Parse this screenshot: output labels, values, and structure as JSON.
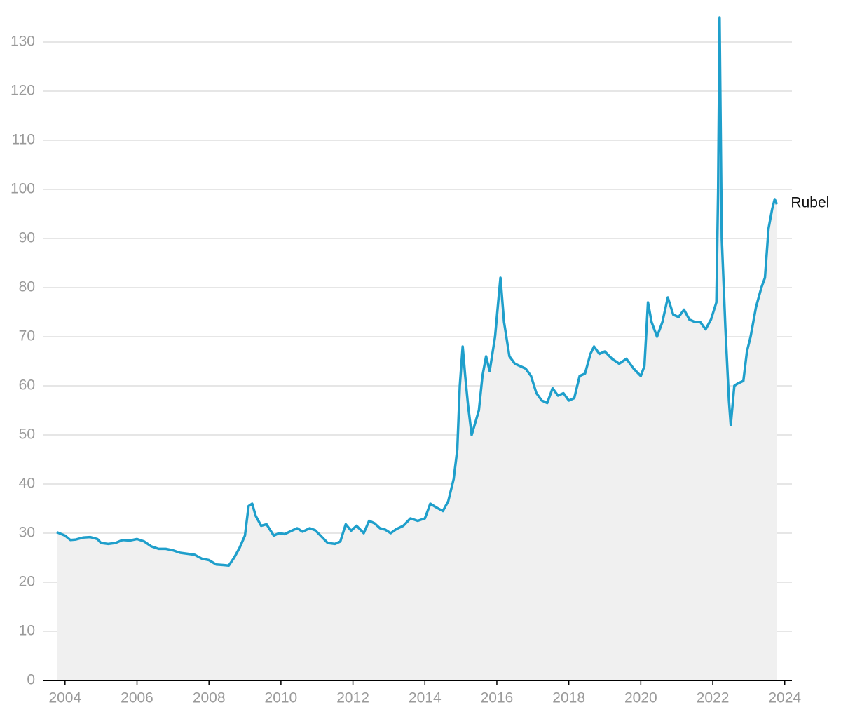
{
  "chart_data": {
    "type": "line",
    "area": true,
    "grid": true,
    "xlim": [
      2003.4,
      2024.2
    ],
    "xticks": [
      2004,
      2006,
      2008,
      2010,
      2012,
      2014,
      2016,
      2018,
      2020,
      2022,
      2024
    ],
    "ylim": [
      0,
      136
    ],
    "yticks": [
      0,
      10,
      20,
      30,
      40,
      50,
      60,
      70,
      80,
      90,
      100,
      110,
      120,
      130
    ],
    "x": [
      2003.77,
      2003.9,
      2004.0,
      2004.15,
      2004.3,
      2004.5,
      2004.7,
      2004.9,
      2005.0,
      2005.2,
      2005.4,
      2005.6,
      2005.8,
      2006.0,
      2006.2,
      2006.4,
      2006.6,
      2006.8,
      2007.0,
      2007.2,
      2007.4,
      2007.6,
      2007.8,
      2008.0,
      2008.2,
      2008.4,
      2008.55,
      2008.7,
      2008.85,
      2009.0,
      2009.1,
      2009.2,
      2009.3,
      2009.45,
      2009.6,
      2009.8,
      2009.95,
      2010.1,
      2010.3,
      2010.45,
      2010.6,
      2010.8,
      2010.95,
      2011.1,
      2011.3,
      2011.5,
      2011.65,
      2011.8,
      2011.95,
      2012.1,
      2012.3,
      2012.45,
      2012.6,
      2012.75,
      2012.9,
      2013.05,
      2013.2,
      2013.4,
      2013.6,
      2013.8,
      2014.0,
      2014.15,
      2014.3,
      2014.5,
      2014.65,
      2014.8,
      2014.9,
      2014.97,
      2015.05,
      2015.12,
      2015.2,
      2015.3,
      2015.4,
      2015.5,
      2015.6,
      2015.7,
      2015.8,
      2015.95,
      2016.05,
      2016.1,
      2016.2,
      2016.35,
      2016.5,
      2016.65,
      2016.8,
      2016.95,
      2017.1,
      2017.25,
      2017.4,
      2017.55,
      2017.7,
      2017.85,
      2018.0,
      2018.15,
      2018.3,
      2018.45,
      2018.6,
      2018.7,
      2018.85,
      2019.0,
      2019.2,
      2019.4,
      2019.6,
      2019.8,
      2020.0,
      2020.1,
      2020.2,
      2020.3,
      2020.45,
      2020.6,
      2020.75,
      2020.9,
      2021.05,
      2021.2,
      2021.35,
      2021.5,
      2021.65,
      2021.8,
      2021.95,
      2022.1,
      2022.15,
      2022.19,
      2022.25,
      2022.35,
      2022.45,
      2022.5,
      2022.6,
      2022.7,
      2022.85,
      2022.95,
      2023.05,
      2023.2,
      2023.35,
      2023.45,
      2023.55,
      2023.65,
      2023.72,
      2023.78
    ],
    "series": [
      {
        "name": "Rubel",
        "color": "#1f9fcb",
        "values": [
          30.2,
          29.8,
          29.5,
          28.6,
          28.7,
          29.1,
          29.2,
          28.8,
          28.0,
          27.8,
          28.0,
          28.6,
          28.5,
          28.8,
          28.3,
          27.3,
          26.8,
          26.8,
          26.5,
          26.0,
          25.8,
          25.6,
          24.8,
          24.5,
          23.6,
          23.5,
          23.4,
          25.0,
          27.0,
          29.5,
          35.5,
          36.0,
          33.5,
          31.5,
          31.8,
          29.5,
          30.0,
          29.8,
          30.5,
          31.0,
          30.3,
          31.0,
          30.6,
          29.5,
          28.0,
          27.8,
          28.3,
          31.8,
          30.5,
          31.5,
          30.0,
          32.5,
          32.0,
          31.0,
          30.7,
          30.0,
          30.8,
          31.5,
          33.0,
          32.5,
          33.0,
          36.0,
          35.3,
          34.5,
          36.5,
          41.0,
          47.0,
          60.0,
          68.0,
          62.0,
          56.0,
          50.0,
          52.5,
          55.0,
          62.0,
          66.0,
          63.0,
          70.0,
          78.0,
          82.0,
          73.0,
          66.0,
          64.5,
          64.0,
          63.5,
          62.0,
          58.5,
          57.0,
          56.5,
          59.5,
          58.0,
          58.5,
          57.0,
          57.5,
          62.0,
          62.5,
          66.5,
          68.0,
          66.5,
          67.0,
          65.5,
          64.5,
          65.5,
          63.5,
          62.0,
          64.0,
          77.0,
          73.0,
          70.0,
          73.0,
          78.0,
          74.5,
          74.0,
          75.5,
          73.5,
          73.0,
          73.0,
          71.5,
          73.5,
          77.0,
          100.0,
          135.0,
          90.0,
          72.0,
          57.0,
          52.0,
          60.0,
          60.5,
          61.0,
          67.0,
          70.0,
          76.0,
          80.0,
          82.0,
          92.0,
          96.0,
          98.0,
          97.0
        ]
      }
    ]
  }
}
